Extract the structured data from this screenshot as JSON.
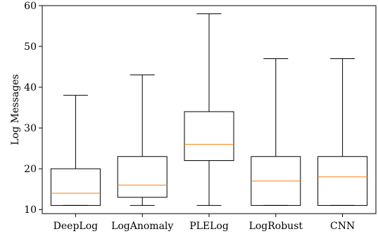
{
  "chart_data": {
    "type": "boxplot",
    "title": "",
    "xlabel": "",
    "ylabel": "Log Messages",
    "ylim": [
      9,
      60
    ],
    "yticks": [
      10,
      20,
      30,
      40,
      50,
      60
    ],
    "grid": false,
    "categories": [
      "DeepLog",
      "LogAnomaly",
      "PLELog",
      "LogRobust",
      "CNN"
    ],
    "boxes": [
      {
        "name": "DeepLog",
        "whisker_low": 11,
        "q1": 11,
        "median": 14,
        "q3": 20,
        "whisker_high": 38
      },
      {
        "name": "LogAnomaly",
        "whisker_low": 11,
        "q1": 13,
        "median": 16,
        "q3": 23,
        "whisker_high": 43
      },
      {
        "name": "PLELog",
        "whisker_low": 11,
        "q1": 22,
        "median": 26,
        "q3": 34,
        "whisker_high": 58
      },
      {
        "name": "LogRobust",
        "whisker_low": 11,
        "q1": 11,
        "median": 17,
        "q3": 23,
        "whisker_high": 47
      },
      {
        "name": "CNN",
        "whisker_low": 11,
        "q1": 11,
        "median": 18,
        "q3": 23,
        "whisker_high": 47
      }
    ],
    "colors": {
      "box": "#000000",
      "median": "#ff7f0e"
    }
  }
}
